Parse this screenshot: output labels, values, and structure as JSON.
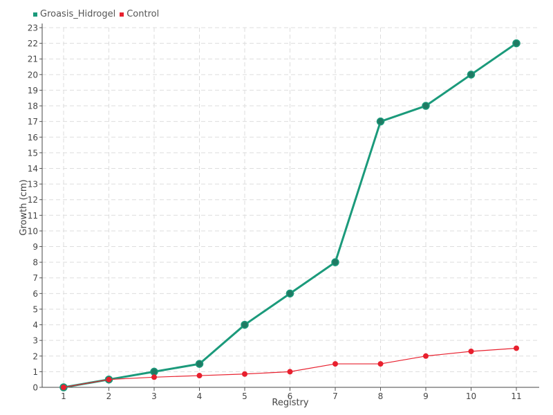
{
  "chart_data": {
    "type": "line",
    "xlabel": "Registry",
    "ylabel": "Growth (cm)",
    "categories": [
      "1",
      "2",
      "3",
      "4",
      "5",
      "6",
      "7",
      "8",
      "9",
      "10",
      "11"
    ],
    "ylim": [
      0,
      23
    ],
    "yticks": [
      0,
      1,
      2,
      3,
      4,
      5,
      6,
      7,
      8,
      9,
      10,
      11,
      12,
      13,
      14,
      15,
      16,
      17,
      18,
      19,
      20,
      21,
      22,
      23
    ],
    "grid": true,
    "legend_position": "top-left",
    "series": [
      {
        "name": "Groasis_Hidrogel",
        "color": "#1b9a7b",
        "values": [
          0,
          0.5,
          1,
          1.5,
          4,
          6,
          8,
          17,
          18,
          20,
          22
        ]
      },
      {
        "name": "Control",
        "color": "#e8202e",
        "values": [
          0,
          0.5,
          0.65,
          0.75,
          0.85,
          1,
          1.5,
          1.5,
          2,
          2.3,
          2.5
        ]
      }
    ]
  }
}
